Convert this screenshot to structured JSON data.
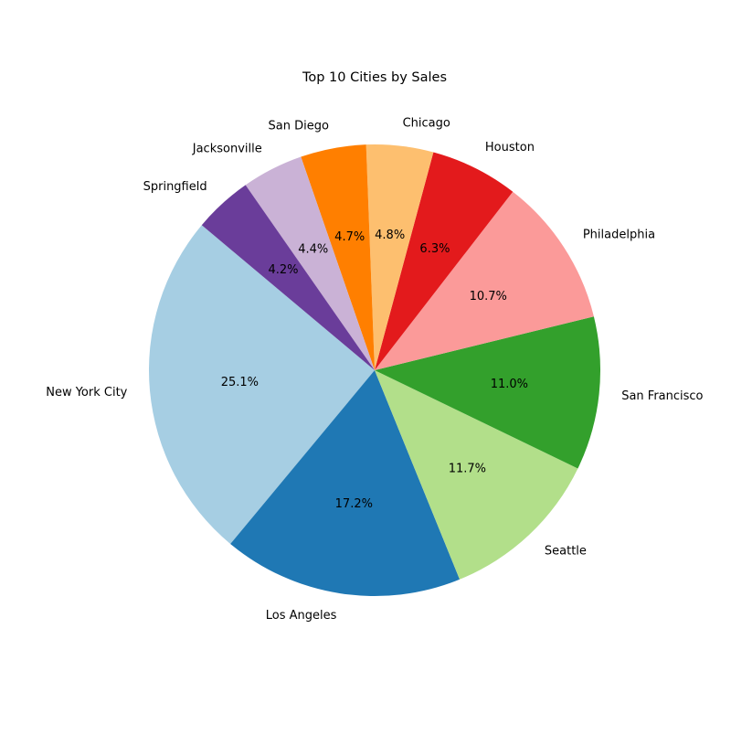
{
  "chart_data": {
    "type": "pie",
    "title": "Top 10 Cities by Sales",
    "categories": [
      "New York City",
      "Los Angeles",
      "Seattle",
      "San Francisco",
      "Philadelphia",
      "Houston",
      "Chicago",
      "San Diego",
      "Jacksonville",
      "Springfield"
    ],
    "values": [
      25.1,
      17.2,
      11.7,
      11.0,
      10.7,
      6.3,
      4.8,
      4.7,
      4.4,
      4.2
    ],
    "percent_labels": [
      "25.1%",
      "17.2%",
      "11.7%",
      "11.0%",
      "10.7%",
      "6.3%",
      "4.8%",
      "4.7%",
      "4.4%",
      "4.2%"
    ],
    "colors": [
      "#a6cee3",
      "#1f78b4",
      "#b2df8a",
      "#33a02c",
      "#fb9a99",
      "#e31a1c",
      "#fdbf6f",
      "#ff7f00",
      "#cab2d6",
      "#6a3d9a"
    ],
    "start_angle_deg": 140,
    "direction": "counterclockwise",
    "legend": "none"
  }
}
